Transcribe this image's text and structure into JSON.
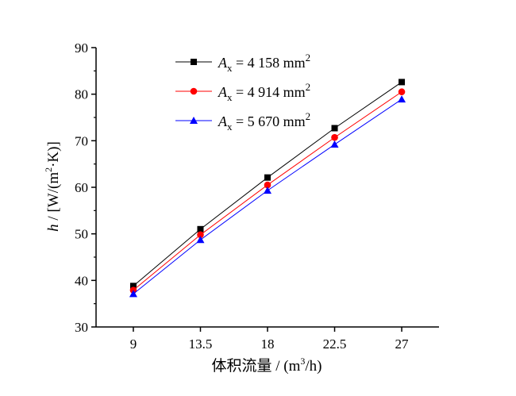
{
  "chart_data": {
    "type": "line",
    "x": [
      9,
      13.5,
      18,
      22.5,
      27
    ],
    "x_tick_labels": [
      "9",
      "13.5",
      "18",
      "22.5",
      "27"
    ],
    "y_ticks": [
      30,
      40,
      50,
      60,
      70,
      80,
      90
    ],
    "xlim": [
      6.5,
      29.5
    ],
    "ylim": [
      30,
      90
    ],
    "xlabel": {
      "main": "体积流量 / (m",
      "sup": "3",
      "tail": "/h)"
    },
    "ylabel": {
      "var": "h",
      "pre": " / [W/(m",
      "sup": "2",
      "tail": "·K)]"
    },
    "grid": false,
    "legend_position": "top-left",
    "series": [
      {
        "legend_var": "A",
        "legend_sub": "x",
        "legend_text": " = 4 158 mm",
        "legend_sup": "2",
        "color": "#000000",
        "marker": "square",
        "values": [
          38.8,
          51.0,
          62.1,
          72.7,
          82.6
        ]
      },
      {
        "legend_var": "A",
        "legend_sub": "x",
        "legend_text": " = 4 914 mm",
        "legend_sup": "2",
        "color": "#ff0000",
        "marker": "circle",
        "values": [
          37.9,
          49.8,
          60.5,
          70.7,
          80.5
        ]
      },
      {
        "legend_var": "A",
        "legend_sub": "x",
        "legend_text": " = 5 670 mm",
        "legend_sup": "2",
        "color": "#0000ff",
        "marker": "triangle",
        "values": [
          37.1,
          48.7,
          59.3,
          69.2,
          78.9
        ]
      }
    ]
  }
}
